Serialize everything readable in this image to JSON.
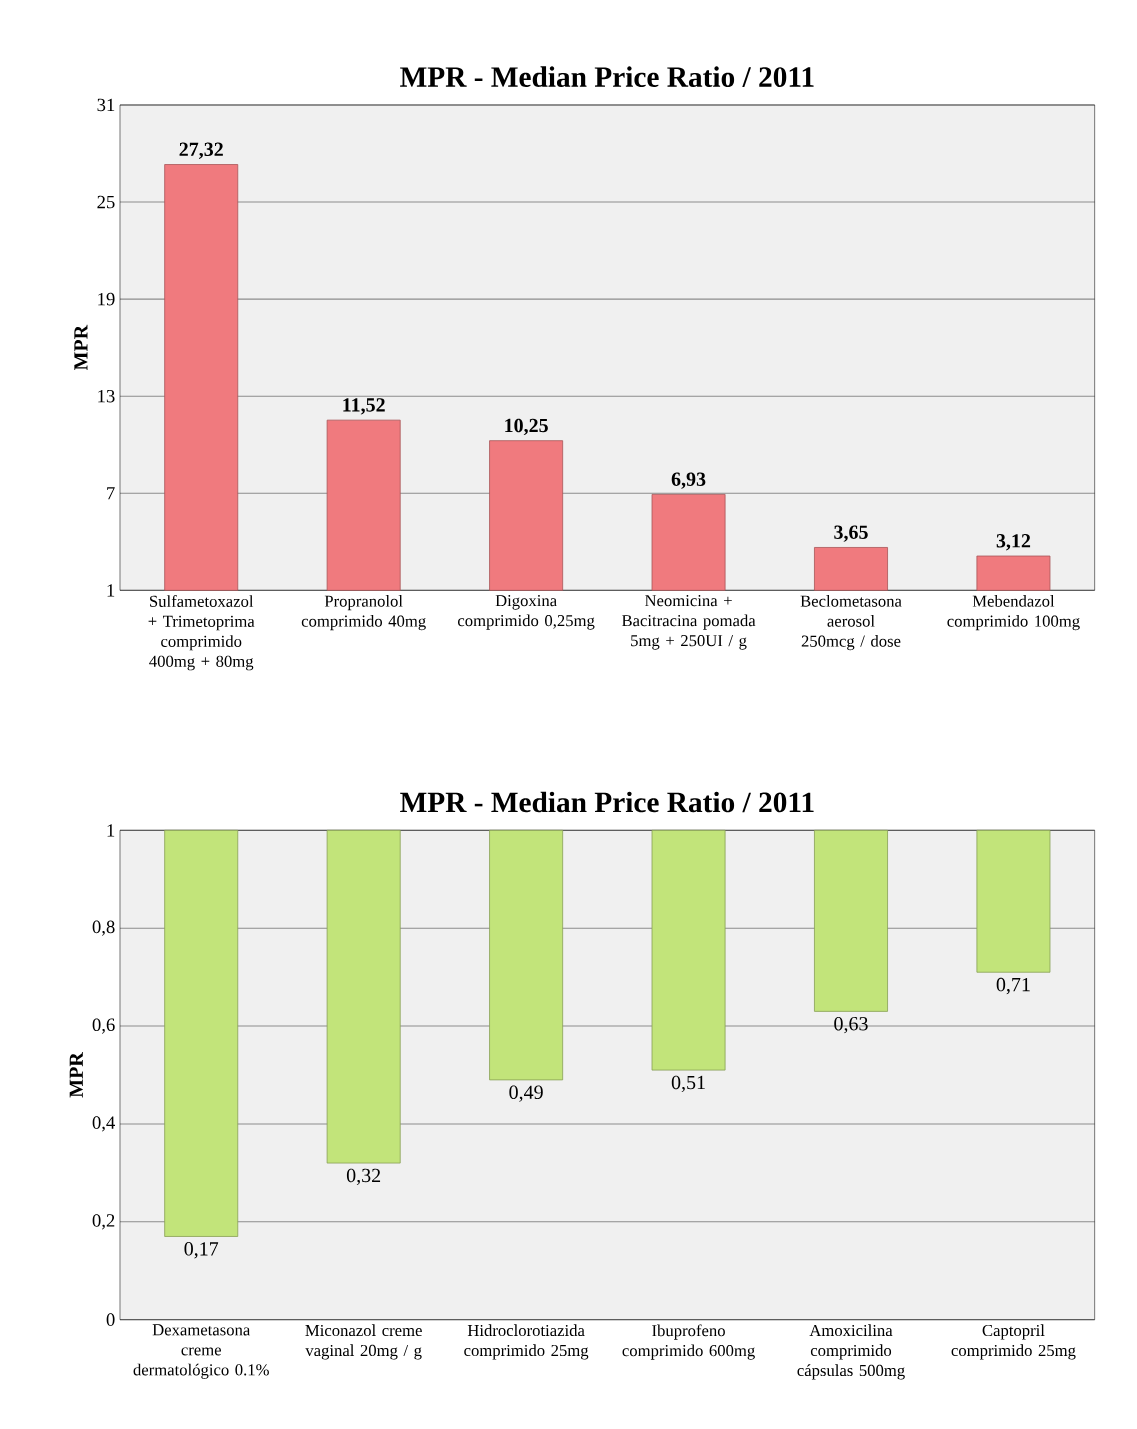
{
  "chart_data": [
    {
      "type": "bar",
      "title": "MPR - Median Price Ratio / 2011",
      "ylabel": "MPR",
      "categories": [
        "Sulfametoxazol + Trimetoprima comprimido 400mg + 80mg",
        "Propranolol comprimido 40mg",
        "Digoxina comprimido 0,25mg",
        "Neomicina + Bacitracina pomada 5mg + 250UI / g",
        "Beclometasona aerosol 250mcg / dose",
        "Mebendazol comprimido 100mg"
      ],
      "values": [
        27.32,
        11.52,
        10.25,
        6.93,
        3.65,
        3.12
      ],
      "value_labels": [
        "27,32",
        "11,52",
        "10,25",
        "6,93",
        "3,65",
        "3,12"
      ],
      "color": "#f07a7e",
      "ylim": [
        1,
        31
      ],
      "yticks": [
        1,
        7,
        13,
        19,
        25,
        31
      ],
      "grid": "y"
    },
    {
      "type": "bar",
      "title": "MPR - Median Price Ratio / 2011",
      "ylabel": "MPR",
      "categories": [
        "Dexametasona creme dermatológico 0.1%",
        "Miconazol creme vaginal 20mg / g",
        "Hidroclorotiazida comprimido 25mg",
        "Ibuprofeno comprimido 600mg",
        "Amoxicilina comprimido cápsulas 500mg",
        "Captopril comprimido 25mg"
      ],
      "base": [
        1,
        1,
        1,
        1,
        1,
        1
      ],
      "values": [
        -0.83,
        -0.68,
        -0.51,
        -0.49,
        -0.37,
        -0.29
      ],
      "value_labels": [
        "0,17",
        "0,32",
        "0,49",
        "0,51",
        "0,63",
        "0,71"
      ],
      "color": "#c2e47a",
      "ylim": [
        0,
        1
      ],
      "yticks": [
        0,
        {
          "value": 0.2,
          "label": "0,2"
        },
        {
          "value": 0.4,
          "label": "0,4"
        },
        {
          "value": 0.6,
          "label": "0,6"
        },
        {
          "value": 0.8,
          "label": "0,8"
        },
        1
      ],
      "grid": "y"
    }
  ]
}
